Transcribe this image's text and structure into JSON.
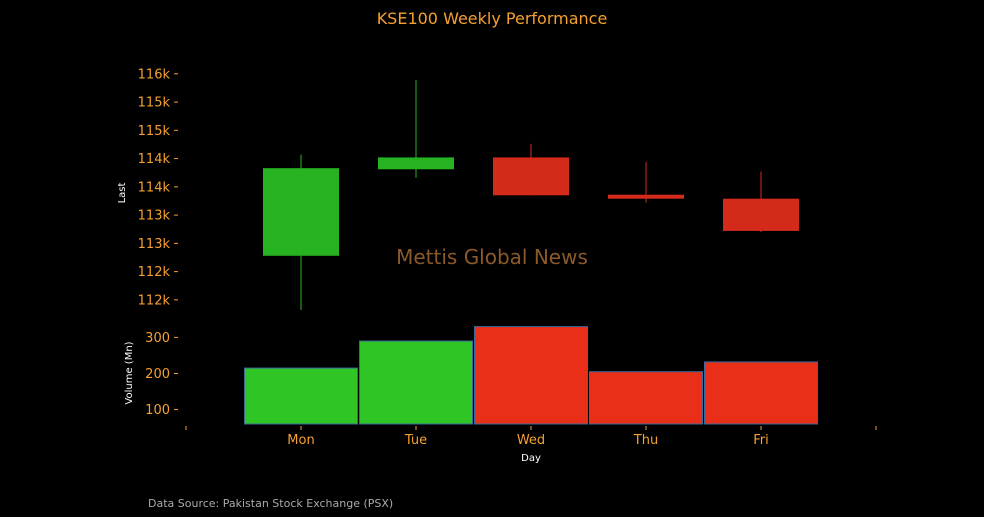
{
  "chart_data": [
    {
      "type": "candlestick",
      "title": "KSE100 Weekly Performance",
      "ylabel": "Last",
      "categories": [
        "Mon",
        "Tue",
        "Wed",
        "Thu",
        "Fri"
      ],
      "ylim": [
        111750,
        116350
      ],
      "yticks": [
        {
          "value": 112000,
          "label": "112k"
        },
        {
          "value": 112500,
          "label": "112k"
        },
        {
          "value": 113000,
          "label": "113k"
        },
        {
          "value": 113500,
          "label": "113k"
        },
        {
          "value": 114000,
          "label": "114k"
        },
        {
          "value": 114500,
          "label": "114k"
        },
        {
          "value": 115000,
          "label": "115k"
        },
        {
          "value": 115500,
          "label": "115k"
        },
        {
          "value": 116000,
          "label": "116k"
        }
      ],
      "candles": [
        {
          "day": "Mon",
          "open": 112780,
          "high": 114570,
          "low": 111820,
          "close": 114330,
          "direction": "up"
        },
        {
          "day": "Tue",
          "open": 114310,
          "high": 115890,
          "low": 114160,
          "close": 114520,
          "direction": "up"
        },
        {
          "day": "Wed",
          "open": 114520,
          "high": 114760,
          "low": 113850,
          "close": 113850,
          "direction": "down"
        },
        {
          "day": "Thu",
          "open": 113860,
          "high": 114440,
          "low": 113720,
          "close": 113790,
          "direction": "down"
        },
        {
          "day": "Fri",
          "open": 113790,
          "high": 114270,
          "low": 113200,
          "close": 113220,
          "direction": "down"
        }
      ],
      "watermark": "Mettis Global News"
    },
    {
      "type": "bar",
      "ylabel": "Volume (Mn)",
      "xlabel": "Day",
      "categories": [
        "Mon",
        "Tue",
        "Wed",
        "Thu",
        "Fri"
      ],
      "values": [
        215,
        290,
        330,
        205,
        232
      ],
      "directions": [
        "up",
        "up",
        "down",
        "down",
        "down"
      ],
      "ylim": [
        60,
        340
      ],
      "yticks": [
        100,
        200,
        300
      ]
    }
  ],
  "colors": {
    "background": "#000000",
    "text_accent": "#f5a030",
    "up": "#27b321",
    "up_bar": "#2ec525",
    "down": "#d42a1a",
    "down_bar": "#ea2f18",
    "bar_edge": "#3a6a9a",
    "watermark": "#8a5a2a",
    "label": "#ffffff",
    "source": "#aaaaaa"
  },
  "footer": {
    "source": "Data Source: Pakistan Stock Exchange (PSX)"
  }
}
